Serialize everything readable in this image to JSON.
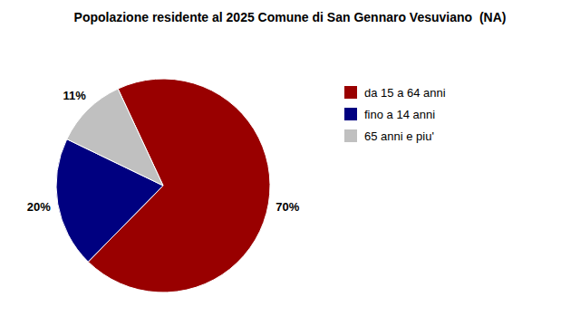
{
  "chart_data": {
    "type": "pie",
    "title": "Popolazione residente al 2025 Comune di San Gennaro Vesuviano  (NA)",
    "categories": [
      "da 15 a 64 anni",
      "fino a 14 anni",
      "65 anni e piu'"
    ],
    "values": [
      70,
      20,
      11
    ],
    "value_labels": [
      "70%",
      "20%",
      "11%"
    ],
    "colors": [
      "#990000",
      "#000080",
      "#c0c0c0"
    ],
    "data_labels": true,
    "legend": "right"
  }
}
